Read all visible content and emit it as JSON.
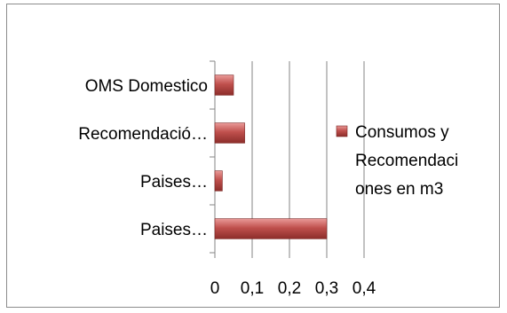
{
  "chart_data": {
    "type": "bar",
    "orientation": "horizontal",
    "categories": [
      "Paises…",
      "Paises…",
      "Recomendació…",
      "OMS Domestico"
    ],
    "series": [
      {
        "name": "Consumos y Recomendaciones en m3",
        "values": [
          0.3,
          0.02,
          0.08,
          0.05
        ],
        "color": "#c0504d"
      }
    ],
    "title": "",
    "xlabel": "",
    "ylabel": "",
    "xlim": [
      0,
      0.4
    ],
    "xticks": [
      "0",
      "0,1",
      "0,2",
      "0,3",
      "0,4"
    ],
    "grid": true,
    "legend": {
      "position": "right",
      "lines": [
        "Consumos y",
        "Recomendaci",
        "ones en m3"
      ]
    }
  }
}
